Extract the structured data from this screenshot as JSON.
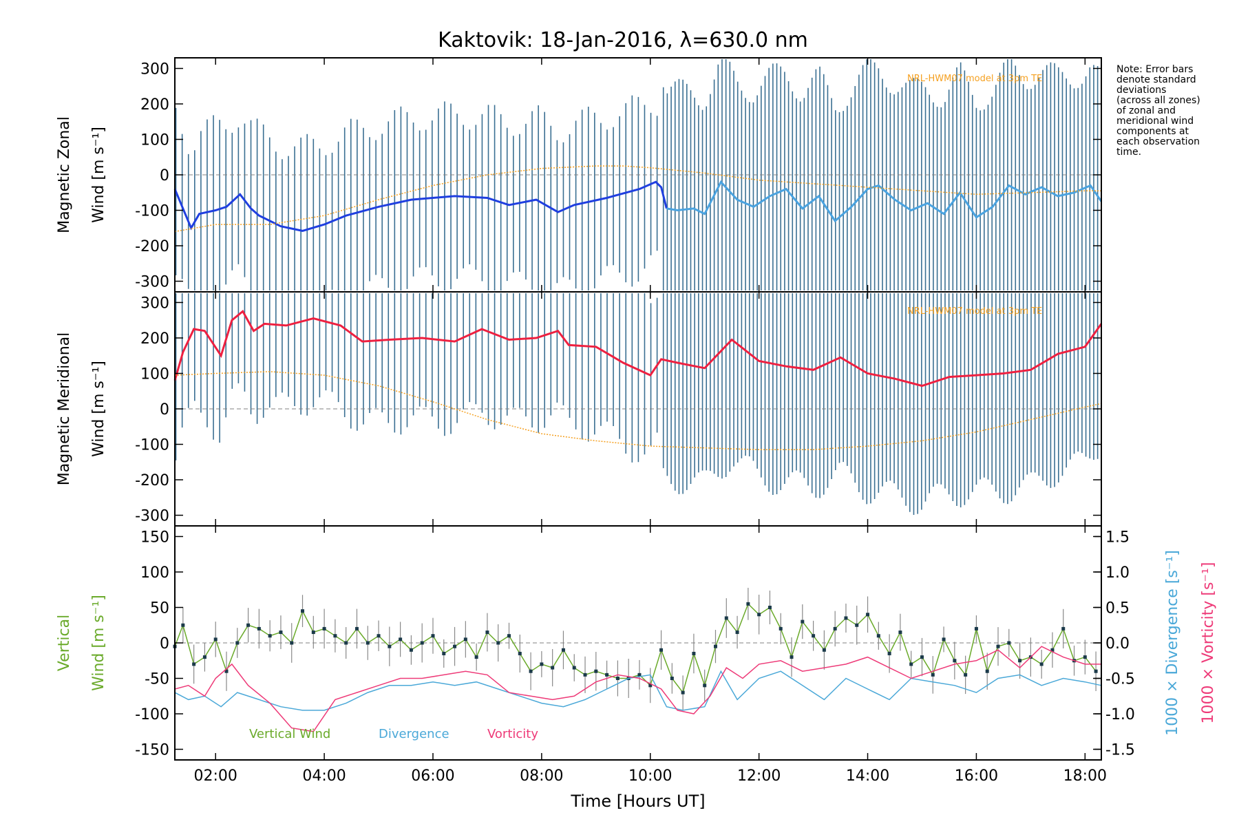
{
  "chart_data": [
    {
      "type": "line",
      "panel": "zonal",
      "title": "Kaktovik: 18-Jan-2016, λ=630.0 nm",
      "ylabel": [
        "Magnetic Zonal",
        "Wind [m s⁻¹]"
      ],
      "xlabel": "",
      "xlim": [
        1.25,
        18.3
      ],
      "ylim": [
        -330,
        330
      ],
      "yticks": [
        -300,
        -200,
        -100,
        0,
        100,
        200,
        300
      ],
      "model_label": "NRL-HWM07 model at 3pm TE",
      "series": [
        {
          "name": "",
          "color": "#1f3fe0",
          "x": [
            1.25,
            1.4,
            1.55,
            1.7,
            2.0,
            2.2,
            2.45,
            2.65,
            2.8,
            3.2,
            3.6,
            4.0,
            4.4,
            5.0,
            5.6,
            6.4,
            7.0,
            7.4,
            7.9,
            8.3,
            8.6,
            9.2,
            9.8,
            10.1,
            10.2,
            10.3
          ],
          "y": [
            -40,
            -95,
            -150,
            -110,
            -100,
            -90,
            -55,
            -95,
            -115,
            -145,
            -158,
            -140,
            -115,
            -90,
            -70,
            -60,
            -65,
            -85,
            -70,
            -105,
            -85,
            -65,
            -40,
            -20,
            -35,
            -95
          ]
        },
        {
          "name": "",
          "color": "#4aa3e0",
          "x": [
            10.3,
            10.5,
            10.8,
            11.0,
            11.3,
            11.6,
            11.9,
            12.2,
            12.5,
            12.8,
            13.1,
            13.4,
            13.7,
            14.0,
            14.2,
            14.5,
            14.8,
            15.1,
            15.4,
            15.7,
            16.0,
            16.3,
            16.6,
            16.9,
            17.2,
            17.5,
            17.8,
            18.1,
            18.3
          ],
          "y": [
            -95,
            -100,
            -95,
            -110,
            -20,
            -70,
            -90,
            -60,
            -40,
            -95,
            -60,
            -130,
            -90,
            -40,
            -30,
            -70,
            -100,
            -80,
            -110,
            -50,
            -120,
            -90,
            -30,
            -55,
            -35,
            -60,
            -50,
            -30,
            -75
          ]
        },
        {
          "name": "NRL-HWM07 model",
          "color": "#f5a020",
          "x": [
            1.25,
            2.0,
            3.0,
            4.0,
            5.0,
            6.0,
            7.0,
            8.0,
            9.0,
            9.5,
            10.0,
            11.0,
            12.0,
            13.0,
            14.0,
            15.0,
            16.0,
            17.0,
            18.0,
            18.3
          ],
          "y": [
            -160,
            -140,
            -140,
            -115,
            -70,
            -30,
            0,
            18,
            25,
            25,
            20,
            5,
            -15,
            -25,
            -35,
            -45,
            -55,
            -50,
            -45,
            -45
          ]
        }
      ]
    },
    {
      "type": "line",
      "panel": "meridional",
      "ylabel": [
        "Magnetic Meridional",
        "Wind [m s⁻¹]"
      ],
      "xlabel": "",
      "xlim": [
        1.25,
        18.3
      ],
      "ylim": [
        -330,
        330
      ],
      "yticks": [
        -300,
        -200,
        -100,
        0,
        100,
        200,
        300
      ],
      "model_label": "NRL-HWM07 model at 3pm TE",
      "series": [
        {
          "name": "",
          "color": "#ee2040",
          "x": [
            1.25,
            1.4,
            1.6,
            1.8,
            2.1,
            2.3,
            2.5,
            2.7,
            2.9,
            3.3,
            3.8,
            4.3,
            4.7,
            5.2,
            5.8,
            6.4,
            6.9,
            7.4,
            7.9,
            8.3,
            8.5,
            9.0,
            9.5,
            10.0,
            10.2,
            10.5,
            11.0,
            11.5,
            12.0,
            12.5,
            13.0,
            13.5,
            14.0,
            14.5,
            15.0,
            15.5,
            16.0,
            16.5,
            17.0,
            17.5,
            18.0,
            18.3
          ],
          "y": [
            80,
            160,
            225,
            220,
            150,
            250,
            275,
            220,
            240,
            235,
            255,
            235,
            190,
            195,
            200,
            190,
            225,
            195,
            200,
            220,
            180,
            175,
            130,
            95,
            140,
            130,
            115,
            195,
            135,
            120,
            110,
            145,
            100,
            85,
            65,
            90,
            95,
            100,
            110,
            155,
            175,
            240
          ]
        },
        {
          "name": "NRL-HWM07 model",
          "color": "#f5a020",
          "x": [
            1.25,
            2.0,
            3.0,
            4.0,
            5.0,
            6.0,
            7.0,
            8.0,
            9.0,
            10.0,
            11.0,
            12.0,
            13.0,
            14.0,
            15.0,
            16.0,
            17.0,
            18.0,
            18.3
          ],
          "y": [
            95,
            100,
            105,
            95,
            65,
            20,
            -30,
            -70,
            -90,
            -105,
            -110,
            -115,
            -115,
            -105,
            -90,
            -65,
            -30,
            5,
            15
          ]
        }
      ]
    },
    {
      "type": "line",
      "panel": "vertical",
      "xlabel": "Time [Hours UT]",
      "xlim": [
        1.25,
        18.3
      ],
      "xticks": [
        2,
        4,
        6,
        8,
        10,
        12,
        14,
        16,
        18
      ],
      "xticklabels": [
        "02:00",
        "04:00",
        "06:00",
        "08:00",
        "10:00",
        "12:00",
        "14:00",
        "16:00",
        "18:00"
      ],
      "ylim": [
        -165,
        165
      ],
      "yticks": [
        -150,
        -100,
        -50,
        0,
        50,
        100,
        150
      ],
      "ylabel_left": [
        "Vertical",
        "Wind [m s⁻¹]"
      ],
      "ylabel_right_1": "1000 × Divergence [s⁻¹]",
      "ylabel_right_2": "1000 × Vorticity [s⁻¹]",
      "y2lim": [
        -1.65,
        1.65
      ],
      "y2ticks": [
        -1.5,
        -1.0,
        -0.5,
        0.0,
        0.5,
        1.0,
        1.5
      ],
      "series": [
        {
          "name": "Vertical Wind",
          "color": "#6aaa2a",
          "x": [
            1.25,
            1.4,
            1.6,
            1.8,
            2.0,
            2.2,
            2.4,
            2.6,
            2.8,
            3.0,
            3.2,
            3.4,
            3.6,
            3.8,
            4.0,
            4.2,
            4.4,
            4.6,
            4.8,
            5.0,
            5.2,
            5.4,
            5.6,
            5.8,
            6.0,
            6.2,
            6.4,
            6.6,
            6.8,
            7.0,
            7.2,
            7.4,
            7.6,
            7.8,
            8.0,
            8.2,
            8.4,
            8.6,
            8.8,
            9.0,
            9.2,
            9.4,
            9.6,
            9.8,
            10.0,
            10.2,
            10.4,
            10.6,
            10.8,
            11.0,
            11.2,
            11.4,
            11.6,
            11.8,
            12.0,
            12.2,
            12.4,
            12.6,
            12.8,
            13.0,
            13.2,
            13.4,
            13.6,
            13.8,
            14.0,
            14.2,
            14.4,
            14.6,
            14.8,
            15.0,
            15.2,
            15.4,
            15.6,
            15.8,
            16.0,
            16.2,
            16.4,
            16.6,
            16.8,
            17.0,
            17.2,
            17.4,
            17.6,
            17.8,
            18.0,
            18.2
          ],
          "y": [
            -5,
            25,
            -30,
            -20,
            5,
            -40,
            0,
            25,
            20,
            10,
            15,
            0,
            45,
            15,
            20,
            10,
            0,
            20,
            0,
            10,
            -5,
            5,
            -10,
            0,
            10,
            -15,
            -5,
            5,
            -20,
            15,
            0,
            10,
            -15,
            -40,
            -30,
            -35,
            -10,
            -35,
            -45,
            -40,
            -45,
            -50,
            -50,
            -45,
            -60,
            -10,
            -50,
            -70,
            -15,
            -60,
            -5,
            35,
            15,
            55,
            40,
            50,
            20,
            -20,
            30,
            10,
            -10,
            20,
            35,
            25,
            40,
            10,
            -15,
            15,
            -30,
            -20,
            -45,
            5,
            -25,
            -45,
            20,
            -40,
            -5,
            0,
            -25,
            -20,
            -30,
            -10,
            20,
            -25,
            -20,
            -40
          ]
        },
        {
          "name": "Divergence",
          "color": "#4aa8d8",
          "x": [
            1.25,
            1.5,
            1.8,
            2.1,
            2.4,
            2.8,
            3.2,
            3.6,
            4.0,
            4.4,
            4.8,
            5.2,
            5.6,
            6.0,
            6.4,
            6.8,
            7.2,
            7.6,
            8.0,
            8.4,
            8.8,
            9.2,
            9.6,
            10.0,
            10.3,
            10.6,
            11.0,
            11.3,
            11.6,
            12.0,
            12.4,
            12.8,
            13.2,
            13.6,
            14.0,
            14.4,
            14.8,
            15.2,
            15.6,
            16.0,
            16.4,
            16.8,
            17.2,
            17.6,
            18.0,
            18.3
          ],
          "y": [
            -0.7,
            -0.8,
            -0.75,
            -0.9,
            -0.7,
            -0.8,
            -0.9,
            -0.95,
            -0.95,
            -0.85,
            -0.7,
            -0.6,
            -0.6,
            -0.55,
            -0.6,
            -0.55,
            -0.65,
            -0.75,
            -0.85,
            -0.9,
            -0.8,
            -0.65,
            -0.5,
            -0.45,
            -0.9,
            -0.95,
            -0.9,
            -0.4,
            -0.8,
            -0.5,
            -0.4,
            -0.6,
            -0.8,
            -0.5,
            -0.65,
            -0.8,
            -0.5,
            -0.55,
            -0.6,
            -0.7,
            -0.5,
            -0.45,
            -0.6,
            -0.5,
            -0.55,
            -0.6
          ]
        },
        {
          "name": "Vorticity",
          "color": "#ee3a78",
          "x": [
            1.25,
            1.5,
            1.8,
            2.0,
            2.3,
            2.6,
            3.0,
            3.4,
            3.8,
            4.2,
            4.6,
            5.0,
            5.4,
            5.8,
            6.2,
            6.6,
            7.0,
            7.4,
            7.8,
            8.2,
            8.6,
            9.0,
            9.4,
            9.8,
            10.2,
            10.5,
            10.8,
            11.1,
            11.4,
            11.7,
            12.0,
            12.4,
            12.8,
            13.2,
            13.6,
            14.0,
            14.4,
            14.8,
            15.2,
            15.6,
            16.0,
            16.4,
            16.8,
            17.2,
            17.6,
            18.0,
            18.3
          ],
          "y": [
            -0.65,
            -0.6,
            -0.75,
            -0.5,
            -0.3,
            -0.6,
            -0.85,
            -1.2,
            -1.25,
            -0.8,
            -0.7,
            -0.6,
            -0.5,
            -0.5,
            -0.45,
            -0.4,
            -0.45,
            -0.7,
            -0.75,
            -0.8,
            -0.75,
            -0.55,
            -0.45,
            -0.5,
            -0.65,
            -0.95,
            -1.0,
            -0.75,
            -0.35,
            -0.5,
            -0.3,
            -0.25,
            -0.4,
            -0.35,
            -0.3,
            -0.2,
            -0.35,
            -0.5,
            -0.4,
            -0.3,
            -0.25,
            -0.1,
            -0.35,
            -0.05,
            -0.2,
            -0.3,
            -0.3
          ]
        }
      ]
    }
  ],
  "note": "Note: Error bars\ndenote standard\ndeviations\n(across all zones)\nof zonal and\nmeridional wind\ncomponents at\neach observation\ntime.",
  "colors": {
    "frame": "#000000",
    "error_bar": "#3a6f92",
    "zero_line": "#808080"
  }
}
